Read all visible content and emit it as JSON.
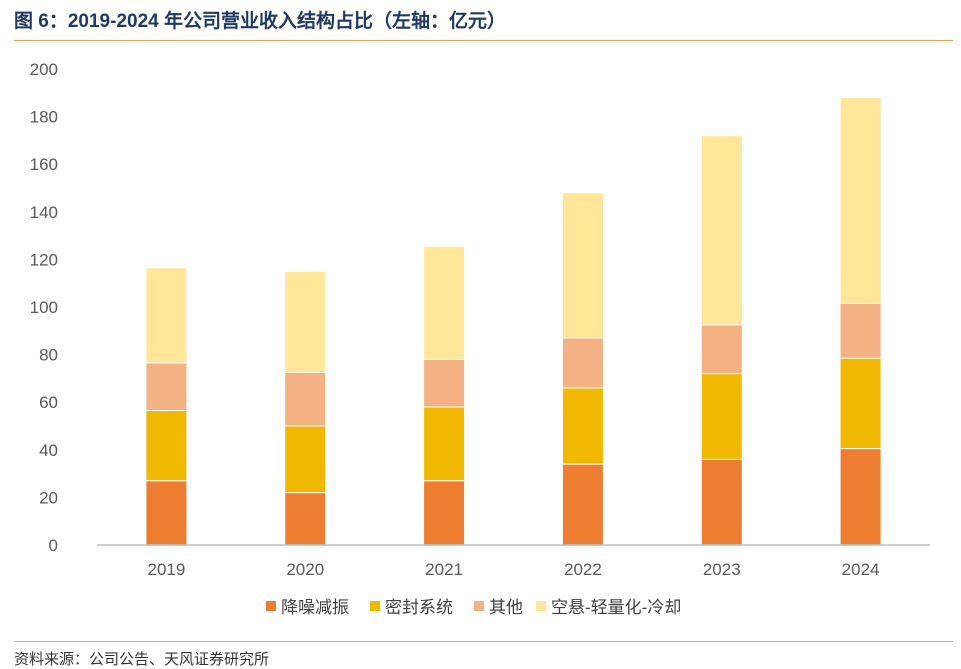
{
  "title": "图 6：2019-2024 年公司营业收入结构占比（左轴：亿元）",
  "source": "资料来源：公司公告、天风证券研究所",
  "chart_data": {
    "type": "bar",
    "stacked": true,
    "categories": [
      "2019",
      "2020",
      "2021",
      "2022",
      "2023",
      "2024"
    ],
    "ylim": [
      0,
      200
    ],
    "yticks": [
      0,
      20,
      40,
      60,
      80,
      100,
      120,
      140,
      160,
      180,
      200
    ],
    "grid": false,
    "legend_position": "bottom",
    "series": [
      {
        "name": "降噪减振",
        "color": "#ed7d31",
        "values": [
          27,
          22,
          27,
          34,
          36,
          40.5
        ]
      },
      {
        "name": "密封系统",
        "color": "#f0b800",
        "values": [
          29.5,
          28,
          31,
          32,
          36,
          38
        ]
      },
      {
        "name": "其他",
        "color": "#f4b183",
        "values": [
          20,
          22.5,
          20,
          21,
          20.5,
          23
        ]
      },
      {
        "name": "空悬-轻量化-冷却",
        "color": "#ffe699",
        "values": [
          40,
          42.5,
          47.5,
          61,
          79.5,
          86.5
        ]
      }
    ]
  }
}
